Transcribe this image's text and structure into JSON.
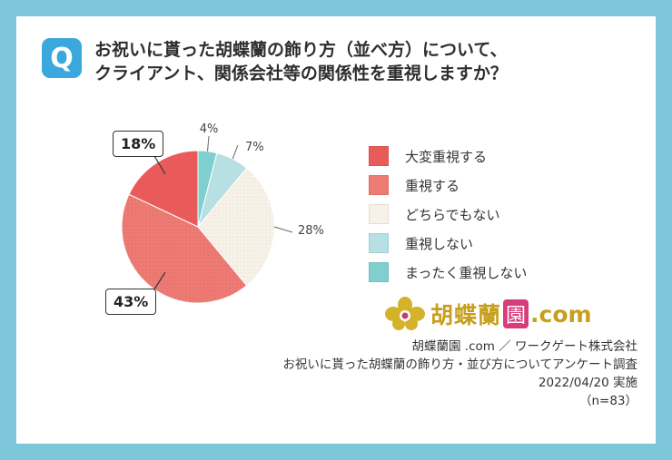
{
  "question": {
    "badge": "Q",
    "line1": "お祝いに貰った胡蝶蘭の飾り方（並べ方）について、",
    "line2": "クライアント、関係会社等の関係性を重視しますか？"
  },
  "chart_data": {
    "type": "pie",
    "title": "お祝いに貰った胡蝶蘭の飾り方（並べ方）について、クライアント、関係会社等の関係性を重視しますか？",
    "categories": [
      "大変重視する",
      "重視する",
      "どちらでもない",
      "重視しない",
      "まったく重視しない"
    ],
    "values": [
      18,
      43,
      28,
      7,
      4
    ],
    "value_labels": [
      "18%",
      "43%",
      "28%",
      "7%",
      "4%"
    ],
    "colors": [
      "#e95b5b",
      "#ee7a74",
      "#f7f2e8",
      "#b6e0e3",
      "#7fcfcf"
    ],
    "legend_position": "right"
  },
  "logo": {
    "name": "胡蝶蘭",
    "box_char": "園",
    "suffix": ".com",
    "icon": "orchid-icon"
  },
  "source": {
    "line1": "胡蝶蘭園 .com ／ ワークゲート株式会社",
    "line2": "お祝いに貰った胡蝶蘭の飾り方・並び方についてアンケート調査",
    "line3": "2022/04/20 実施",
    "line4": "（n=83）"
  }
}
